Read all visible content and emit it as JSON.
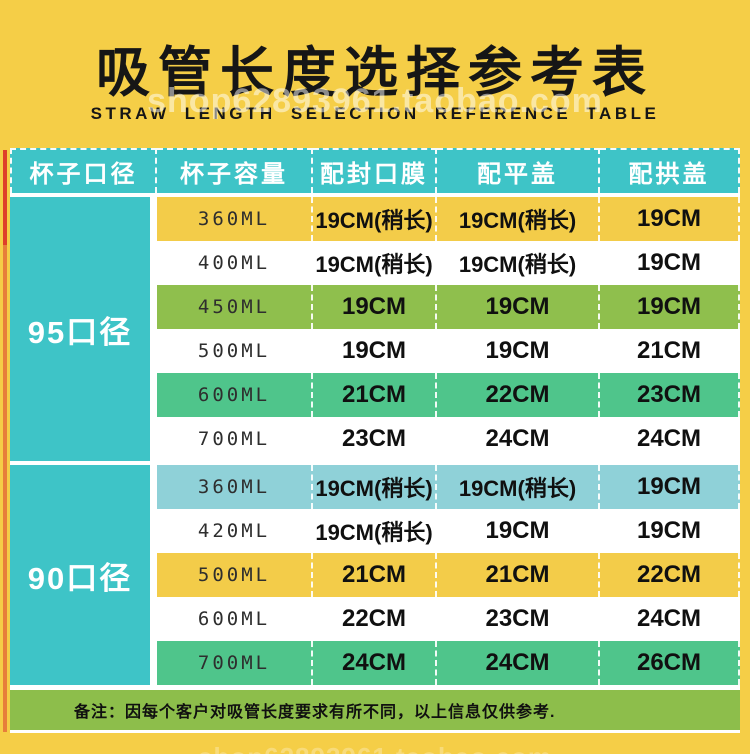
{
  "watermark": "shop62893961.taobao.com",
  "colors": {
    "page_bg": "#F5CE47",
    "header_bg": "#3EC4C7",
    "group_bg": "#3EC4C7",
    "note_bg": "#8DBE4B",
    "row_yellow": "#F3CC49",
    "row_white": "#FFFFFF",
    "row_olive": "#8FBF4D",
    "row_emerald": "#4FC58B",
    "row_cyan": "#8FD1D8",
    "header_text": "#FFFFFF",
    "title_text": "#161616"
  },
  "chart_data": {
    "type": "table",
    "title": "吸管长度选择参考表",
    "subtitle": "STRAW LENGTH SELECTION REFERENCE TABLE",
    "columns": [
      "杯子口径",
      "杯子容量",
      "配封口膜",
      "配平盖",
      "配拱盖"
    ],
    "groups": [
      {
        "label": "95口径",
        "rows": [
          {
            "capacity": "360ML",
            "film": "19CM(稍长)",
            "flat": "19CM(稍长)",
            "dome": "19CM",
            "bg": "row_yellow"
          },
          {
            "capacity": "400ML",
            "film": "19CM(稍长)",
            "flat": "19CM(稍长)",
            "dome": "19CM",
            "bg": "row_white"
          },
          {
            "capacity": "450ML",
            "film": "19CM",
            "flat": "19CM",
            "dome": "19CM",
            "bg": "row_olive"
          },
          {
            "capacity": "500ML",
            "film": "19CM",
            "flat": "19CM",
            "dome": "21CM",
            "bg": "row_white"
          },
          {
            "capacity": "600ML",
            "film": "21CM",
            "flat": "22CM",
            "dome": "23CM",
            "bg": "row_emerald"
          },
          {
            "capacity": "700ML",
            "film": "23CM",
            "flat": "24CM",
            "dome": "24CM",
            "bg": "row_white"
          }
        ]
      },
      {
        "label": "90口径",
        "rows": [
          {
            "capacity": "360ML",
            "film": "19CM(稍长)",
            "flat": "19CM(稍长)",
            "dome": "19CM",
            "bg": "row_cyan"
          },
          {
            "capacity": "420ML",
            "film": "19CM(稍长)",
            "flat": "19CM",
            "dome": "19CM",
            "bg": "row_white"
          },
          {
            "capacity": "500ML",
            "film": "21CM",
            "flat": "21CM",
            "dome": "22CM",
            "bg": "row_yellow"
          },
          {
            "capacity": "600ML",
            "film": "22CM",
            "flat": "23CM",
            "dome": "24CM",
            "bg": "row_white"
          },
          {
            "capacity": "700ML",
            "film": "24CM",
            "flat": "24CM",
            "dome": "26CM",
            "bg": "row_emerald"
          }
        ]
      }
    ],
    "note": "备注：因每个客户对吸管长度要求有所不同，以上信息仅供参考."
  }
}
